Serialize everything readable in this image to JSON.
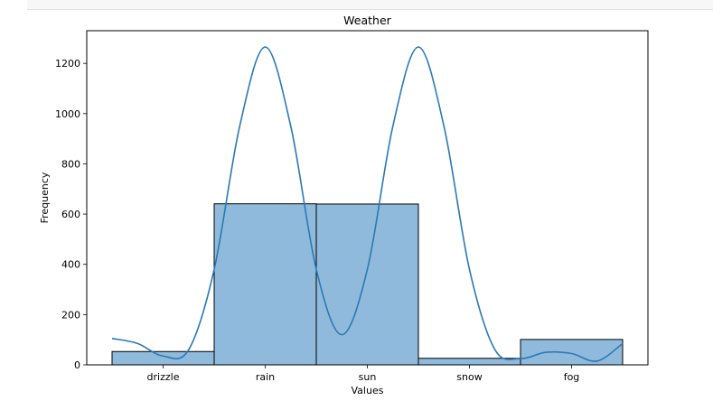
{
  "chart_data": {
    "type": "bar",
    "title": "Weather",
    "xlabel": "Values",
    "ylabel": "Frequency",
    "categories": [
      "drizzle",
      "rain",
      "sun",
      "snow",
      "fog"
    ],
    "values": [
      53,
      641,
      640,
      26,
      101
    ],
    "ylim": [
      0,
      1330
    ],
    "yticks": [
      0,
      200,
      400,
      600,
      800,
      1000,
      1200
    ],
    "ytick_labels": [
      "0",
      "200",
      "400",
      "600",
      "800",
      "1000",
      "1200"
    ],
    "kde": {
      "x": [
        -0.5,
        -0.25,
        0,
        0.25,
        0.5,
        0.75,
        1,
        1.25,
        1.5,
        1.75,
        2,
        2.25,
        2.5,
        2.75,
        3,
        3.25,
        3.5,
        3.75,
        4,
        4.25,
        4.5
      ],
      "y": [
        105,
        85,
        35,
        60,
        380,
        950,
        1265,
        950,
        380,
        120,
        380,
        950,
        1265,
        950,
        380,
        60,
        25,
        50,
        45,
        15,
        85
      ]
    },
    "colors": {
      "bar_fill": "#8fbadb",
      "bar_edge": "#000000",
      "kde_line": "#2b79b5",
      "axes": "#000000"
    },
    "grid": false,
    "legend": "none"
  }
}
